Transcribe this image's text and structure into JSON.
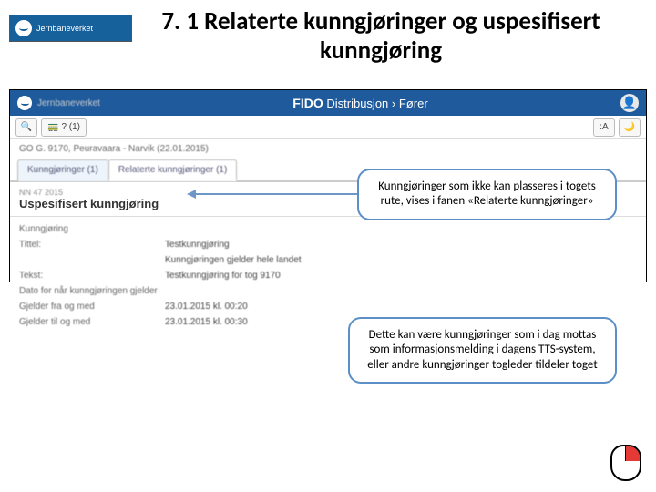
{
  "logo": {
    "name": "Jernbaneverket"
  },
  "title": "7. 1 Relaterte kunngjøringer og uspesifisert kunngjøring",
  "app": {
    "brand": "Jernbaneverket",
    "name": "FIDO",
    "subtitle": "Distribusjon",
    "crumb_sep": "›",
    "role": "Fører",
    "user_icon": "👤"
  },
  "toolbar": {
    "search": "🔍",
    "train": "🚃",
    "flag": "? (1)",
    "font": ":A",
    "moon": "🌙"
  },
  "breadcrumb": "GO G. 9170, Peuravaara - Narvik (22.01.2015)",
  "tabs": {
    "a": "Kunngjøringer (1)",
    "b": "Relaterte kunngjøringer (1)"
  },
  "section": {
    "sub": "NN 47 2015",
    "title": "Uspesifisert kunngjøring"
  },
  "form": {
    "r1l": "Kunngjøring",
    "r1v": "",
    "r2l": "Tittel:",
    "r2v": "Testkunngjøring",
    "r3l": "",
    "r3v": "Kunngjøringen gjelder hele landet",
    "r4l": "Tekst:",
    "r4v": "Testkunngjøring for tog 9170",
    "r5l": "Dato for når kunngjøringen gjelder",
    "r5v": "",
    "r6l": "Gjelder fra og med",
    "r6v": "23.01.2015 kl. 00:20",
    "r7l": "Gjelder til og med",
    "r7v": "23.01.2015 kl. 00:30"
  },
  "callouts": {
    "c1": "Kunngjøringer som ikke kan plasseres i togets rute, vises i fanen «Relaterte kunngjøringer»",
    "c2": "Dette kan være kunngjøringer som i dag mottas som informasjonsmelding i dagens TTS-system, eller andre kunngjøringer togleder tildeler toget"
  },
  "colors": {
    "brand_blue": "#16609c",
    "app_blue": "#1e5a9c",
    "callout_border": "#5b8fc7",
    "arrow": "#6e97c8",
    "mouse_red": "#e53935"
  }
}
